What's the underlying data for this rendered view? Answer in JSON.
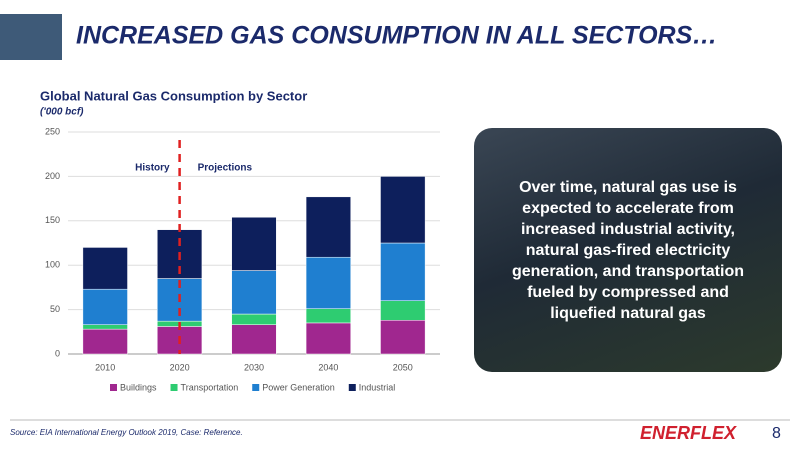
{
  "slide_title": "INCREASED GAS CONSUMPTION IN ALL SECTORS…",
  "callout": "Over time, natural gas use is expected to accelerate from increased industrial activity, natural gas-fired electricity generation, and transportation fueled by compressed and liquefied natural gas",
  "source": "Source: EIA International Energy Outlook 2019, Case: Reference.",
  "logo": "ENERFLEX",
  "page_number": "8",
  "chart_data": {
    "type": "stacked_bar",
    "title": "Global Natural Gas Consumption by Sector",
    "subtitle": "('000 bcf)",
    "categories": [
      "2010",
      "2020",
      "2030",
      "2040",
      "2050"
    ],
    "series": [
      {
        "name": "Buildings",
        "color": "#a0278f",
        "values": [
          28,
          31,
          33,
          35,
          38
        ]
      },
      {
        "name": "Transportation",
        "color": "#2ecc71",
        "values": [
          5,
          6,
          12,
          16,
          22
        ]
      },
      {
        "name": "Power Generation",
        "color": "#1f7fd0",
        "values": [
          40,
          48,
          49,
          58,
          65
        ]
      },
      {
        "name": "Industrial",
        "color": "#0d1f5c",
        "values": [
          47,
          55,
          60,
          68,
          75
        ]
      }
    ],
    "annotations": [
      "History",
      "Projections"
    ],
    "ylim": [
      0,
      250
    ],
    "yticks": [
      0,
      50,
      100,
      150,
      200,
      250
    ],
    "grid": true,
    "legend": "bottom"
  }
}
